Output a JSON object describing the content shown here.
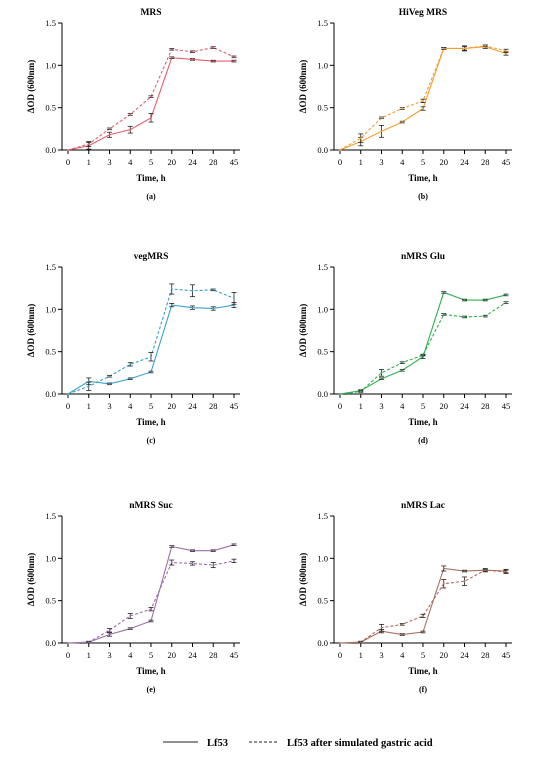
{
  "figure": {
    "legend": {
      "solid_label": "Lf53",
      "dashed_label": "Lf53 after simulated gastric acid"
    }
  },
  "chart_data": [
    {
      "type": "line",
      "title": "MRS",
      "panel_label": "(a)",
      "color": "#e06070",
      "categories": [
        "0",
        "1",
        "3",
        "4",
        "5",
        "20",
        "24",
        "28",
        "45"
      ],
      "xlabel": "Time, h",
      "ylabel": "ΔOD (600nm)",
      "ylim": [
        0,
        1.5
      ],
      "yticks": [
        "0.0",
        "0.5",
        "1.0",
        "1.5"
      ],
      "series": [
        {
          "name": "Lf53",
          "style": "solid",
          "values": [
            0.0,
            0.05,
            0.18,
            0.24,
            0.38,
            1.09,
            1.07,
            1.05,
            1.05
          ],
          "errors": [
            0,
            0.04,
            0.03,
            0.04,
            0.05,
            0.01,
            0.01,
            0.01,
            0.01
          ]
        },
        {
          "name": "Lf53 after simulated gastric acid",
          "style": "dashed",
          "values": [
            0.0,
            0.07,
            0.25,
            0.42,
            0.63,
            1.19,
            1.16,
            1.21,
            1.1
          ],
          "errors": [
            0,
            0.03,
            0.01,
            0.01,
            0.01,
            0.01,
            0.01,
            0.01,
            0.01
          ]
        }
      ]
    },
    {
      "type": "line",
      "title": "HiVeg MRS",
      "panel_label": "(b)",
      "color": "#f0a030",
      "categories": [
        "0",
        "1",
        "3",
        "4",
        "5",
        "20",
        "24",
        "28",
        "45"
      ],
      "xlabel": "Time, h",
      "ylabel": "ΔOD (600nm)",
      "ylim": [
        0,
        1.5
      ],
      "yticks": [
        "0.0",
        "0.5",
        "1.0",
        "1.5"
      ],
      "series": [
        {
          "name": "Lf53",
          "style": "solid",
          "values": [
            0.0,
            0.1,
            0.22,
            0.33,
            0.49,
            1.2,
            1.2,
            1.22,
            1.14
          ],
          "errors": [
            0,
            0.05,
            0.07,
            0.01,
            0.02,
            0.01,
            0.03,
            0.02,
            0.02
          ]
        },
        {
          "name": "Lf53 after simulated gastric acid",
          "style": "dashed",
          "values": [
            0.0,
            0.14,
            0.38,
            0.49,
            0.58,
            1.2,
            1.2,
            1.23,
            1.17
          ],
          "errors": [
            0,
            0.05,
            0.01,
            0.01,
            0.02,
            0.01,
            0.02,
            0.01,
            0.02
          ]
        }
      ]
    },
    {
      "type": "line",
      "title": "vegMRS",
      "panel_label": "(c)",
      "color": "#3aa0c8",
      "categories": [
        "0",
        "1",
        "3",
        "4",
        "5",
        "20",
        "24",
        "28",
        "45"
      ],
      "xlabel": "Time, h",
      "ylabel": "ΔOD (600nm)",
      "ylim": [
        0,
        1.5
      ],
      "yticks": [
        "0.0",
        "0.5",
        "1.0",
        "1.5"
      ],
      "series": [
        {
          "name": "Lf53",
          "style": "solid",
          "values": [
            0.0,
            0.15,
            0.12,
            0.18,
            0.26,
            1.05,
            1.02,
            1.01,
            1.05
          ],
          "errors": [
            0,
            0.04,
            0.01,
            0.01,
            0.01,
            0.02,
            0.02,
            0.02,
            0.03
          ]
        },
        {
          "name": "Lf53 after simulated gastric acid",
          "style": "dashed",
          "values": [
            0.0,
            0.09,
            0.21,
            0.35,
            0.44,
            1.24,
            1.22,
            1.23,
            1.13
          ],
          "errors": [
            0,
            0.05,
            0.01,
            0.02,
            0.05,
            0.06,
            0.07,
            0.01,
            0.07
          ]
        }
      ]
    },
    {
      "type": "line",
      "title": "nMRS Glu",
      "panel_label": "(d)",
      "color": "#30b050",
      "categories": [
        "0",
        "1",
        "3",
        "4",
        "5",
        "20",
        "24",
        "28",
        "45"
      ],
      "xlabel": "Time, h",
      "ylabel": "ΔOD (600nm)",
      "ylim": [
        0,
        1.5
      ],
      "yticks": [
        "0.0",
        "0.5",
        "1.0",
        "1.5"
      ],
      "series": [
        {
          "name": "Lf53",
          "style": "solid",
          "values": [
            0.0,
            0.04,
            0.18,
            0.28,
            0.44,
            1.2,
            1.11,
            1.11,
            1.17
          ],
          "errors": [
            0,
            0.01,
            0.01,
            0.01,
            0.02,
            0.01,
            0.01,
            0.01,
            0.01
          ]
        },
        {
          "name": "Lf53 after simulated gastric acid",
          "style": "dashed",
          "values": [
            0.0,
            0.03,
            0.25,
            0.37,
            0.46,
            0.94,
            0.91,
            0.92,
            1.08
          ],
          "errors": [
            0,
            0.01,
            0.04,
            0.01,
            0.01,
            0.01,
            0.01,
            0.01,
            0.01
          ]
        }
      ]
    },
    {
      "type": "line",
      "title": "nMRS Suc",
      "panel_label": "(e)",
      "color": "#9a70a8",
      "categories": [
        "0",
        "1",
        "3",
        "4",
        "5",
        "20",
        "24",
        "28",
        "45"
      ],
      "xlabel": "Time, h",
      "ylabel": "ΔOD (600nm)",
      "ylim": [
        0,
        1.5
      ],
      "yticks": [
        "0.0",
        "0.5",
        "1.0",
        "1.5"
      ],
      "series": [
        {
          "name": "Lf53",
          "style": "solid",
          "values": [
            0.0,
            0.01,
            0.1,
            0.17,
            0.26,
            1.14,
            1.09,
            1.09,
            1.16
          ],
          "errors": [
            0,
            0.01,
            0.02,
            0.01,
            0.01,
            0.01,
            0.01,
            0.01,
            0.01
          ]
        },
        {
          "name": "Lf53 after simulated gastric acid",
          "style": "dashed",
          "values": [
            0.0,
            0.01,
            0.15,
            0.32,
            0.4,
            0.95,
            0.94,
            0.92,
            0.97
          ],
          "errors": [
            0,
            0.01,
            0.02,
            0.03,
            0.02,
            0.03,
            0.02,
            0.03,
            0.02
          ]
        }
      ]
    },
    {
      "type": "line",
      "title": "nMRS Lac",
      "panel_label": "(f)",
      "color": "#a87060",
      "categories": [
        "0",
        "1",
        "3",
        "4",
        "5",
        "20",
        "24",
        "28",
        "45"
      ],
      "xlabel": "Time, h",
      "ylabel": "ΔOD (600nm)",
      "ylim": [
        0,
        1.5
      ],
      "yticks": [
        "0.0",
        "0.5",
        "1.0",
        "1.5"
      ],
      "series": [
        {
          "name": "Lf53",
          "style": "solid",
          "values": [
            0.0,
            0.01,
            0.14,
            0.1,
            0.13,
            0.88,
            0.85,
            0.86,
            0.85
          ],
          "errors": [
            0,
            0.01,
            0.02,
            0.01,
            0.01,
            0.03,
            0.01,
            0.01,
            0.02
          ]
        },
        {
          "name": "Lf53 after simulated gastric acid",
          "style": "dashed",
          "values": [
            0.0,
            0.01,
            0.18,
            0.22,
            0.32,
            0.7,
            0.73,
            0.86,
            0.84
          ],
          "errors": [
            0,
            0.01,
            0.04,
            0.01,
            0.02,
            0.05,
            0.05,
            0.02,
            0.02
          ]
        }
      ]
    }
  ]
}
